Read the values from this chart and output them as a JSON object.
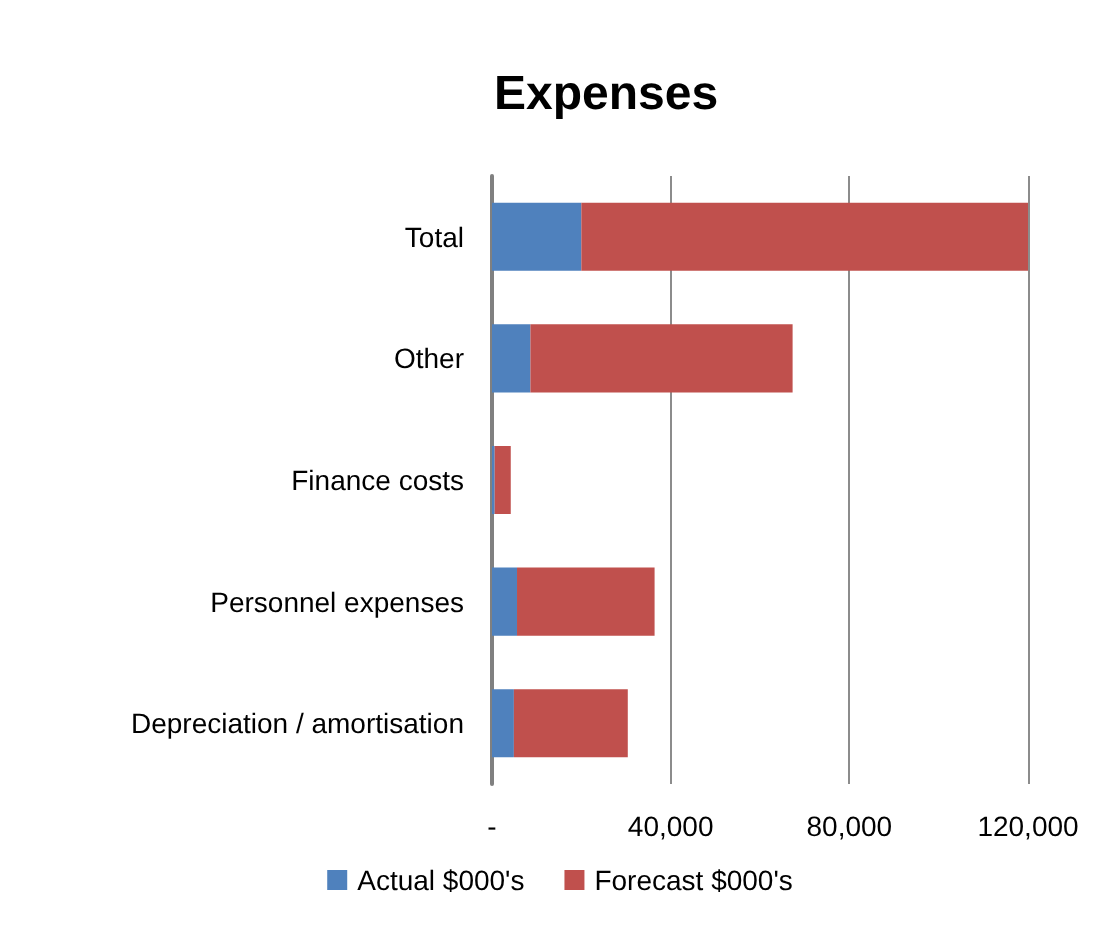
{
  "chart_data": {
    "type": "bar",
    "orientation": "horizontal",
    "stacked": true,
    "title": "Expenses",
    "categories": [
      "Total",
      "Other",
      "Finance costs",
      "Personnel expenses",
      "Depreciation / amortisation"
    ],
    "series": [
      {
        "name": "Actual $000's",
        "color": "#4f81bd",
        "values": [
          20000,
          8600,
          600,
          5600,
          4900
        ]
      },
      {
        "name": "Forecast $000's",
        "color": "#c0504d",
        "values": [
          100000,
          58700,
          3600,
          30800,
          25500
        ]
      }
    ],
    "xlim": [
      0,
      120000
    ],
    "xticks": [
      {
        "value": 0,
        "label": "-"
      },
      {
        "value": 40000,
        "label": "40,000"
      },
      {
        "value": 80000,
        "label": "80,000"
      },
      {
        "value": 120000,
        "label": "120,000"
      }
    ],
    "grid": "x",
    "legend": "bottom"
  }
}
